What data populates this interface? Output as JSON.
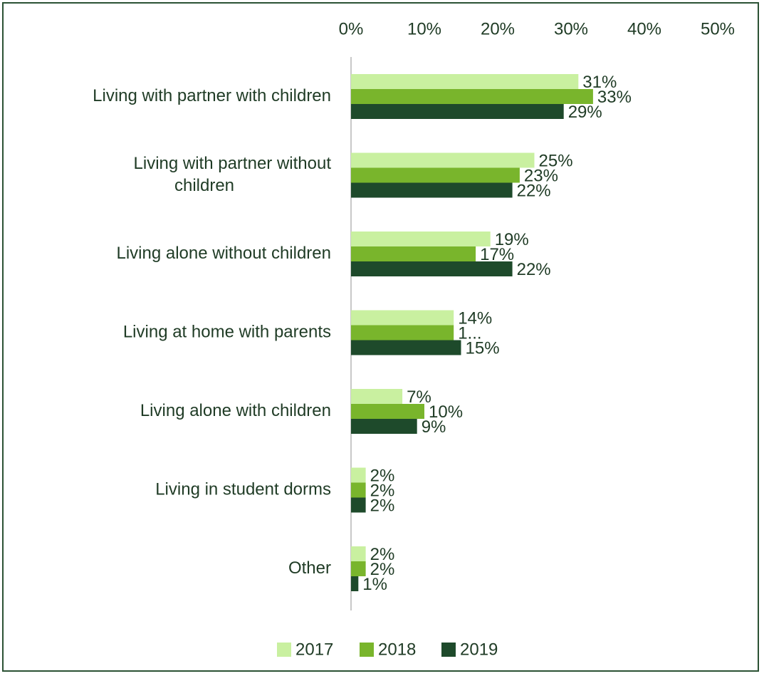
{
  "chart_data": {
    "type": "bar",
    "orientation": "horizontal",
    "title": "",
    "xlabel": "",
    "ylabel": "",
    "xlim": [
      0,
      50
    ],
    "ticks": [
      {
        "value": 0,
        "label": "0%"
      },
      {
        "value": 10,
        "label": "10%"
      },
      {
        "value": 20,
        "label": "20%"
      },
      {
        "value": 30,
        "label": "30%"
      },
      {
        "value": 40,
        "label": "40%"
      },
      {
        "value": 50,
        "label": "50%"
      }
    ],
    "axis_position": "top",
    "grid": false,
    "legend_placement": "bottom",
    "categories": [
      {
        "lines": [
          "Living with partner with children"
        ]
      },
      {
        "lines": [
          "Living with partner without",
          "children"
        ]
      },
      {
        "lines": [
          "Living alone without children"
        ]
      },
      {
        "lines": [
          "Living at home with parents"
        ]
      },
      {
        "lines": [
          "Living alone with children"
        ]
      },
      {
        "lines": [
          "Living in student dorms"
        ]
      },
      {
        "lines": [
          "Other"
        ]
      }
    ],
    "series": [
      {
        "name": "2017",
        "color": "#c9f0a0",
        "values": [
          31,
          25,
          19,
          14,
          7,
          2,
          2
        ],
        "labels": [
          "31%",
          "25%",
          "19%",
          "14%",
          "7%",
          "2%",
          "2%"
        ]
      },
      {
        "name": "2018",
        "color": "#79b52c",
        "values": [
          33,
          23,
          17,
          14,
          10,
          2,
          2
        ],
        "labels": [
          "33%",
          "23%",
          "17%",
          "1...",
          "10%",
          "2%",
          "2%"
        ]
      },
      {
        "name": "2019",
        "color": "#1e4a2b",
        "values": [
          29,
          22,
          22,
          15,
          9,
          2,
          1
        ],
        "labels": [
          "29%",
          "22%",
          "22%",
          "15%",
          "9%",
          "2%",
          "1%"
        ]
      }
    ]
  },
  "colors": {
    "axis": "#c8c8c8",
    "text": "#1f3b25",
    "border": "#2b5234"
  }
}
